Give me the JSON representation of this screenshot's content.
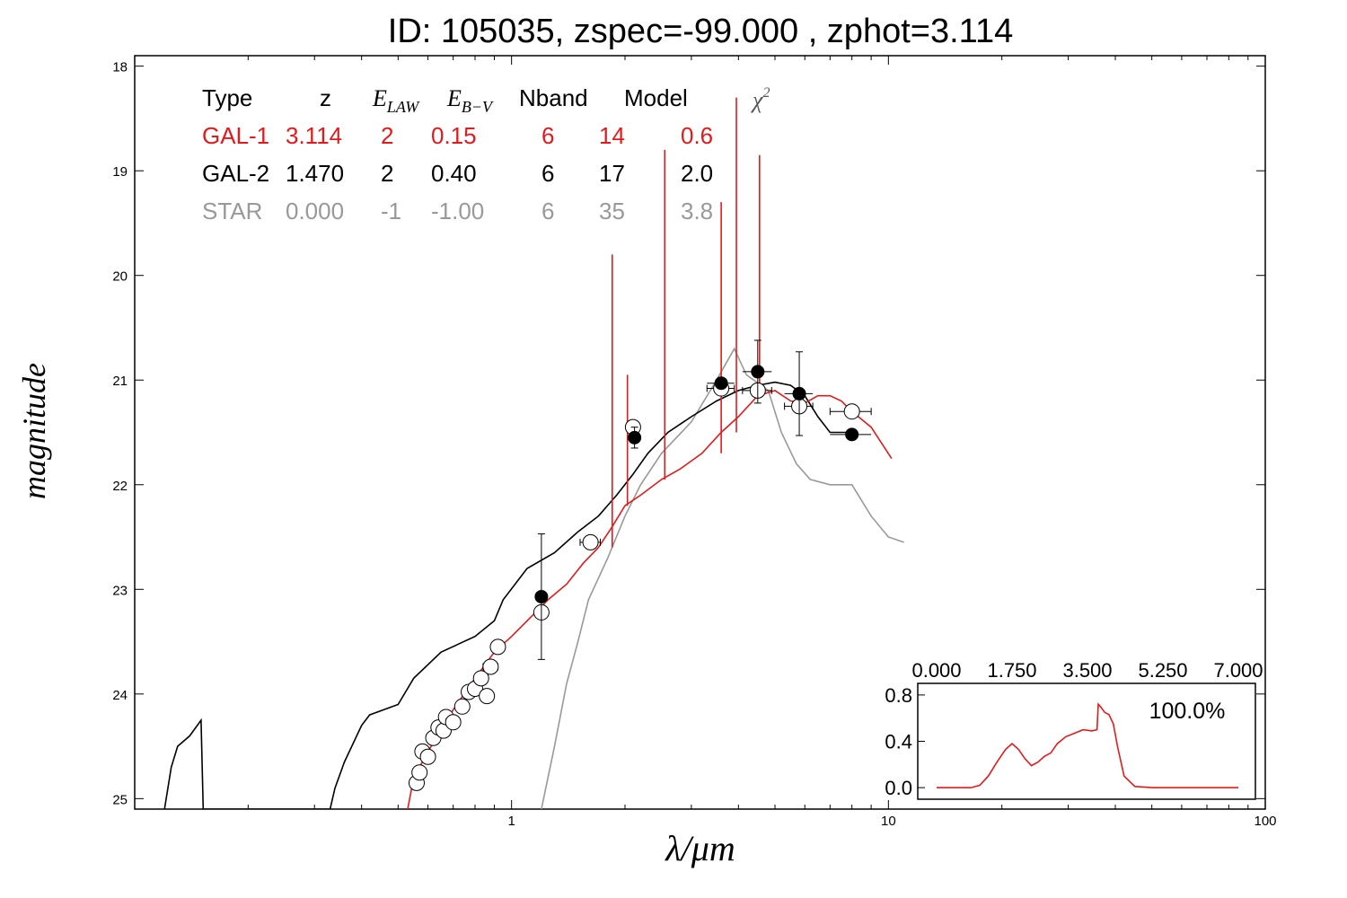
{
  "title": "ID:  105035, zspec=-99.000 , zphot=3.114",
  "colors": {
    "gal1": "#e31a1c",
    "gal2": "#000000",
    "star": "#999999",
    "pdz": "#e31a1c"
  },
  "table": {
    "headers": [
      "Type",
      "z",
      "E",
      "LAW",
      "E",
      "B−V",
      "Nband",
      "Model",
      "χ",
      "2"
    ],
    "rows": [
      {
        "cells": [
          "GAL-1",
          "3.114",
          "2",
          "0.15",
          "6",
          "14",
          "0.6"
        ],
        "color": "#e31a1c"
      },
      {
        "cells": [
          "GAL-2",
          "1.470",
          "2",
          "0.40",
          "6",
          "17",
          "2.0"
        ],
        "color": "#000000"
      },
      {
        "cells": [
          "STAR",
          "0.000",
          "-1",
          "-1.00",
          "6",
          "35",
          "3.8"
        ],
        "color": "#999999"
      }
    ]
  },
  "chart_data": [
    {
      "type": "line",
      "xlabel": "λ/μm",
      "ylabel": "magnitude",
      "xscale": "log",
      "xlim": [
        0.1,
        100
      ],
      "ylim": [
        25.1,
        17.9
      ],
      "xticks": [
        "1",
        "10",
        "100"
      ],
      "yticks": [
        "18",
        "19",
        "20",
        "21",
        "22",
        "23",
        "24",
        "25"
      ],
      "series": [
        {
          "name": "GAL-1",
          "color": "#e31a1c",
          "points": [
            [
              0.53,
              25.1
            ],
            [
              0.55,
              24.8
            ],
            [
              0.6,
              24.55
            ],
            [
              0.7,
              24.15
            ],
            [
              0.8,
              23.85
            ],
            [
              0.9,
              23.6
            ],
            [
              1.0,
              23.45
            ],
            [
              1.1,
              23.3
            ],
            [
              1.25,
              23.1
            ],
            [
              1.4,
              22.95
            ],
            [
              1.55,
              22.75
            ],
            [
              1.7,
              22.6
            ],
            [
              1.85,
              22.4
            ],
            [
              2.0,
              22.2
            ],
            [
              2.2,
              22.1
            ],
            [
              2.5,
              21.95
            ],
            [
              2.8,
              21.85
            ],
            [
              3.2,
              21.7
            ],
            [
              3.6,
              21.5
            ],
            [
              4.0,
              21.35
            ],
            [
              4.5,
              21.15
            ],
            [
              5.0,
              21.1
            ],
            [
              5.5,
              21.2
            ],
            [
              6.0,
              21.22
            ],
            [
              6.5,
              21.15
            ],
            [
              7.0,
              21.15
            ],
            [
              7.5,
              21.2
            ],
            [
              8.0,
              21.3
            ],
            [
              9.0,
              21.45
            ],
            [
              10.2,
              21.75
            ]
          ],
          "emission_lines": [
            [
              1.85,
              19.8
            ],
            [
              2.03,
              20.95
            ],
            [
              2.55,
              18.8
            ],
            [
              3.6,
              19.3
            ],
            [
              3.95,
              18.3
            ],
            [
              4.55,
              18.85
            ]
          ]
        },
        {
          "name": "GAL-2",
          "color": "#000000",
          "points": [
            [
              0.12,
              25.1
            ],
            [
              0.125,
              24.7
            ],
            [
              0.13,
              24.5
            ],
            [
              0.14,
              24.4
            ],
            [
              0.15,
              24.25
            ],
            [
              0.152,
              25.1
            ],
            [
              0.33,
              25.1
            ],
            [
              0.34,
              24.9
            ],
            [
              0.36,
              24.65
            ],
            [
              0.4,
              24.3
            ],
            [
              0.42,
              24.2
            ],
            [
              0.5,
              24.1
            ],
            [
              0.55,
              23.85
            ],
            [
              0.65,
              23.6
            ],
            [
              0.8,
              23.45
            ],
            [
              0.9,
              23.3
            ],
            [
              0.95,
              23.1
            ],
            [
              1.1,
              22.8
            ],
            [
              1.3,
              22.65
            ],
            [
              1.5,
              22.45
            ],
            [
              1.7,
              22.3
            ],
            [
              1.9,
              22.1
            ],
            [
              2.1,
              21.9
            ],
            [
              2.3,
              21.7
            ],
            [
              2.6,
              21.5
            ],
            [
              3.0,
              21.35
            ],
            [
              3.5,
              21.2
            ],
            [
              4.0,
              21.1
            ],
            [
              4.5,
              21.05
            ],
            [
              5.0,
              21.02
            ],
            [
              5.5,
              21.05
            ],
            [
              6.0,
              21.15
            ],
            [
              6.5,
              21.35
            ],
            [
              7.0,
              21.5
            ],
            [
              8.0,
              21.5
            ]
          ]
        },
        {
          "name": "STAR",
          "color": "#999999",
          "points": [
            [
              1.2,
              25.1
            ],
            [
              1.3,
              24.5
            ],
            [
              1.4,
              23.9
            ],
            [
              1.5,
              23.5
            ],
            [
              1.6,
              23.1
            ],
            [
              1.8,
              22.7
            ],
            [
              2.0,
              22.3
            ],
            [
              2.2,
              22.0
            ],
            [
              2.5,
              21.7
            ],
            [
              3.0,
              21.4
            ],
            [
              3.5,
              21.0
            ],
            [
              3.9,
              20.7
            ],
            [
              4.2,
              20.95
            ],
            [
              4.8,
              21.1
            ],
            [
              5.2,
              21.5
            ],
            [
              5.7,
              21.8
            ],
            [
              6.2,
              21.95
            ],
            [
              7.0,
              22.0
            ],
            [
              8.0,
              22.0
            ],
            [
              9.0,
              22.3
            ],
            [
              10.0,
              22.5
            ],
            [
              11.0,
              22.55
            ]
          ]
        }
      ],
      "observed_points": [
        {
          "x": 1.2,
          "y": 23.07,
          "xerr": 0.04,
          "yerr": 0.6
        },
        {
          "x": 2.12,
          "y": 21.55,
          "xerr": 0.06,
          "yerr": 0.1
        },
        {
          "x": 3.6,
          "y": 21.03,
          "xerr": 0.3,
          "yerr": 0.05
        },
        {
          "x": 4.5,
          "y": 20.92,
          "xerr": 0.4,
          "yerr": 0.3
        },
        {
          "x": 5.8,
          "y": 21.13,
          "xerr": 0.5,
          "yerr": 0.4
        },
        {
          "x": 8.0,
          "y": 21.52,
          "xerr": 1.0,
          "yerr": 0.05
        }
      ],
      "model_points": [
        {
          "x": 0.56,
          "y": 24.85,
          "xerr": 0.02
        },
        {
          "x": 0.57,
          "y": 24.75,
          "xerr": 0.02
        },
        {
          "x": 0.58,
          "y": 24.55,
          "xerr": 0.0
        },
        {
          "x": 0.6,
          "y": 24.6,
          "xerr": 0.0
        },
        {
          "x": 0.62,
          "y": 24.42,
          "xerr": 0.02
        },
        {
          "x": 0.64,
          "y": 24.32,
          "xerr": 0.0
        },
        {
          "x": 0.66,
          "y": 24.35,
          "xerr": 0.02
        },
        {
          "x": 0.67,
          "y": 24.22,
          "xerr": 0.02
        },
        {
          "x": 0.7,
          "y": 24.27,
          "xerr": 0.03
        },
        {
          "x": 0.74,
          "y": 24.12,
          "xerr": 0.0
        },
        {
          "x": 0.77,
          "y": 23.98,
          "xerr": 0.0
        },
        {
          "x": 0.8,
          "y": 23.95,
          "xerr": 0.0
        },
        {
          "x": 0.83,
          "y": 23.85,
          "xerr": 0.0
        },
        {
          "x": 0.86,
          "y": 24.02,
          "xerr": 0.0
        },
        {
          "x": 0.88,
          "y": 23.74,
          "xerr": 0.04
        },
        {
          "x": 0.92,
          "y": 23.55,
          "xerr": 0.0
        },
        {
          "x": 1.2,
          "y": 23.22,
          "xerr": 0.04
        },
        {
          "x": 1.62,
          "y": 22.55,
          "xerr": 0.1
        },
        {
          "x": 2.1,
          "y": 21.45,
          "xerr": 0.05
        },
        {
          "x": 3.6,
          "y": 21.08,
          "xerr": 0.3
        },
        {
          "x": 4.5,
          "y": 21.1,
          "xerr": 0.4
        },
        {
          "x": 5.8,
          "y": 21.25,
          "xerr": 0.5
        },
        {
          "x": 8.0,
          "y": 21.3,
          "xerr": 1.0
        }
      ]
    },
    {
      "type": "line",
      "xlim": [
        0,
        7
      ],
      "ylim": [
        -0.1,
        0.9
      ],
      "xticks": [
        "0.000",
        "1.750",
        "3.500",
        "5.250",
        "7.000"
      ],
      "yticks": [
        "0.0",
        "0.4",
        "0.8"
      ],
      "annotation": "100.0%",
      "series": [
        {
          "color": "#e31a1c",
          "points": [
            [
              0.0,
              0.0
            ],
            [
              0.8,
              0.0
            ],
            [
              1.0,
              0.02
            ],
            [
              1.2,
              0.1
            ],
            [
              1.4,
              0.22
            ],
            [
              1.6,
              0.33
            ],
            [
              1.75,
              0.38
            ],
            [
              1.9,
              0.33
            ],
            [
              2.05,
              0.25
            ],
            [
              2.2,
              0.19
            ],
            [
              2.35,
              0.22
            ],
            [
              2.5,
              0.27
            ],
            [
              2.65,
              0.3
            ],
            [
              2.8,
              0.38
            ],
            [
              3.0,
              0.44
            ],
            [
              3.2,
              0.47
            ],
            [
              3.4,
              0.5
            ],
            [
              3.6,
              0.49
            ],
            [
              3.72,
              0.5
            ],
            [
              3.75,
              0.72
            ],
            [
              3.8,
              0.7
            ],
            [
              3.9,
              0.65
            ],
            [
              4.0,
              0.63
            ],
            [
              4.1,
              0.55
            ],
            [
              4.2,
              0.35
            ],
            [
              4.35,
              0.1
            ],
            [
              4.6,
              0.01
            ],
            [
              5.0,
              0.0
            ],
            [
              7.0,
              0.0
            ]
          ]
        }
      ]
    }
  ]
}
